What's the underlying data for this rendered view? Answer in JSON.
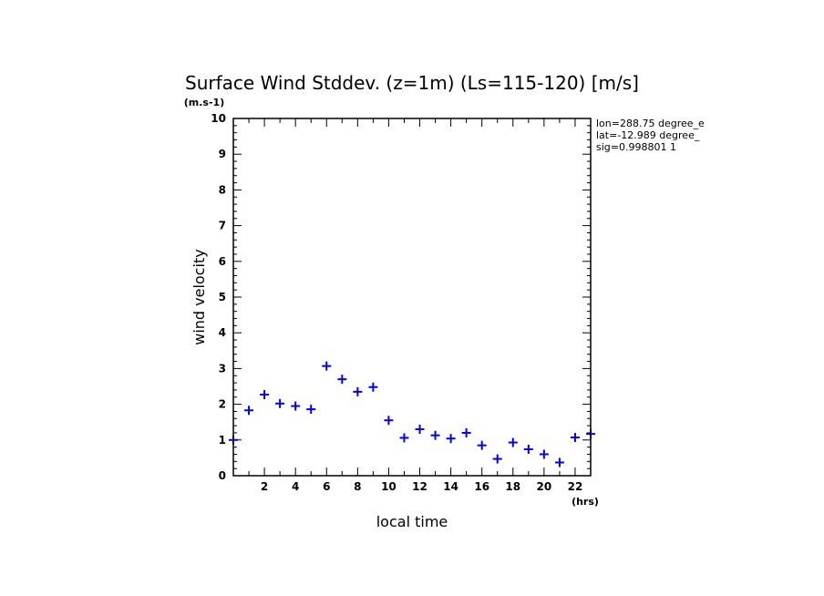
{
  "chart_data": {
    "type": "scatter",
    "title": "Surface Wind Stddev. (z=1m) (Ls=115-120) [m/s]",
    "xlabel": "local time",
    "ylabel": "wind velocity",
    "x_unit": "(hrs)",
    "y_unit": "(m.s-1)",
    "xlim": [
      0,
      23
    ],
    "ylim": [
      0,
      10
    ],
    "x_ticks": [
      "2",
      "4",
      "6",
      "8",
      "10",
      "12",
      "14",
      "16",
      "18",
      "20",
      "22"
    ],
    "y_ticks": [
      "0",
      "1",
      "2",
      "3",
      "4",
      "5",
      "6",
      "7",
      "8",
      "9",
      "10"
    ],
    "grid": false,
    "marker": "+",
    "marker_color": "#0000ee",
    "annotations": [
      "lon=288.75 degree_e",
      "lat=-12.989 degree_",
      "sig=0.998801 1"
    ],
    "x": [
      0,
      1,
      2,
      3,
      4,
      5,
      6,
      7,
      8,
      9,
      10,
      11,
      12,
      13,
      14,
      15,
      16,
      17,
      18,
      19,
      20,
      21,
      22,
      23
    ],
    "values": [
      1.0,
      1.83,
      2.27,
      2.02,
      1.95,
      1.86,
      3.07,
      2.7,
      2.35,
      2.48,
      1.55,
      1.06,
      1.3,
      1.13,
      1.04,
      1.2,
      0.85,
      0.47,
      0.93,
      0.74,
      0.6,
      0.37,
      1.07,
      1.17
    ]
  }
}
